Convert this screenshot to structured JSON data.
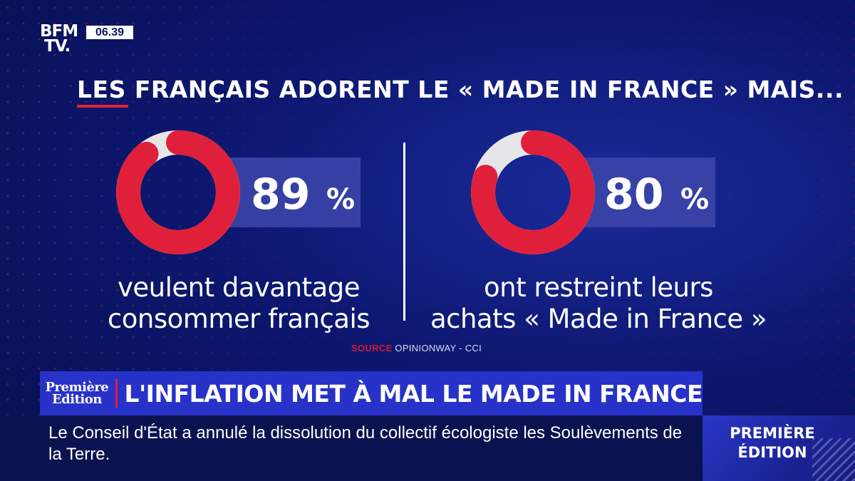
{
  "channel": {
    "logo": "BFM TV.",
    "logo_line1": "BFM",
    "logo_line2": "TV.",
    "time": "06.39"
  },
  "headline": "LES FRANÇAIS ADORENT LE « MADE IN FRANCE » MAIS...",
  "colors": {
    "accent_red": "#e0203a",
    "ring_remainder": "#e6e6ea",
    "label_box": "#3b45a8",
    "banner": "#2732c9",
    "background": "#0d1770"
  },
  "chart_data": [
    {
      "type": "pie",
      "subtype": "donut",
      "value": 89,
      "unit": "%",
      "value_label": "89 %",
      "caption_lines": [
        "veulent davantage",
        "consommer français"
      ]
    },
    {
      "type": "pie",
      "subtype": "donut",
      "value": 80,
      "unit": "%",
      "value_label": "80 %",
      "caption_lines": [
        "ont restreint leurs",
        "achats « Made in France »"
      ]
    }
  ],
  "source": {
    "label": "SOURCE",
    "text": "OPINIONWAY - CCI"
  },
  "banner": {
    "logo_line1": "Première",
    "logo_line2": "Edition",
    "title": "L'INFLATION MET À MAL LE MADE IN FRANCE"
  },
  "ticker": {
    "text": "Le Conseil d'État a annulé la dissolution du collectif écologiste les Soulèvements de la Terre."
  },
  "corner": {
    "line1": "PREMIÈRE",
    "line2": "ÉDITION"
  }
}
